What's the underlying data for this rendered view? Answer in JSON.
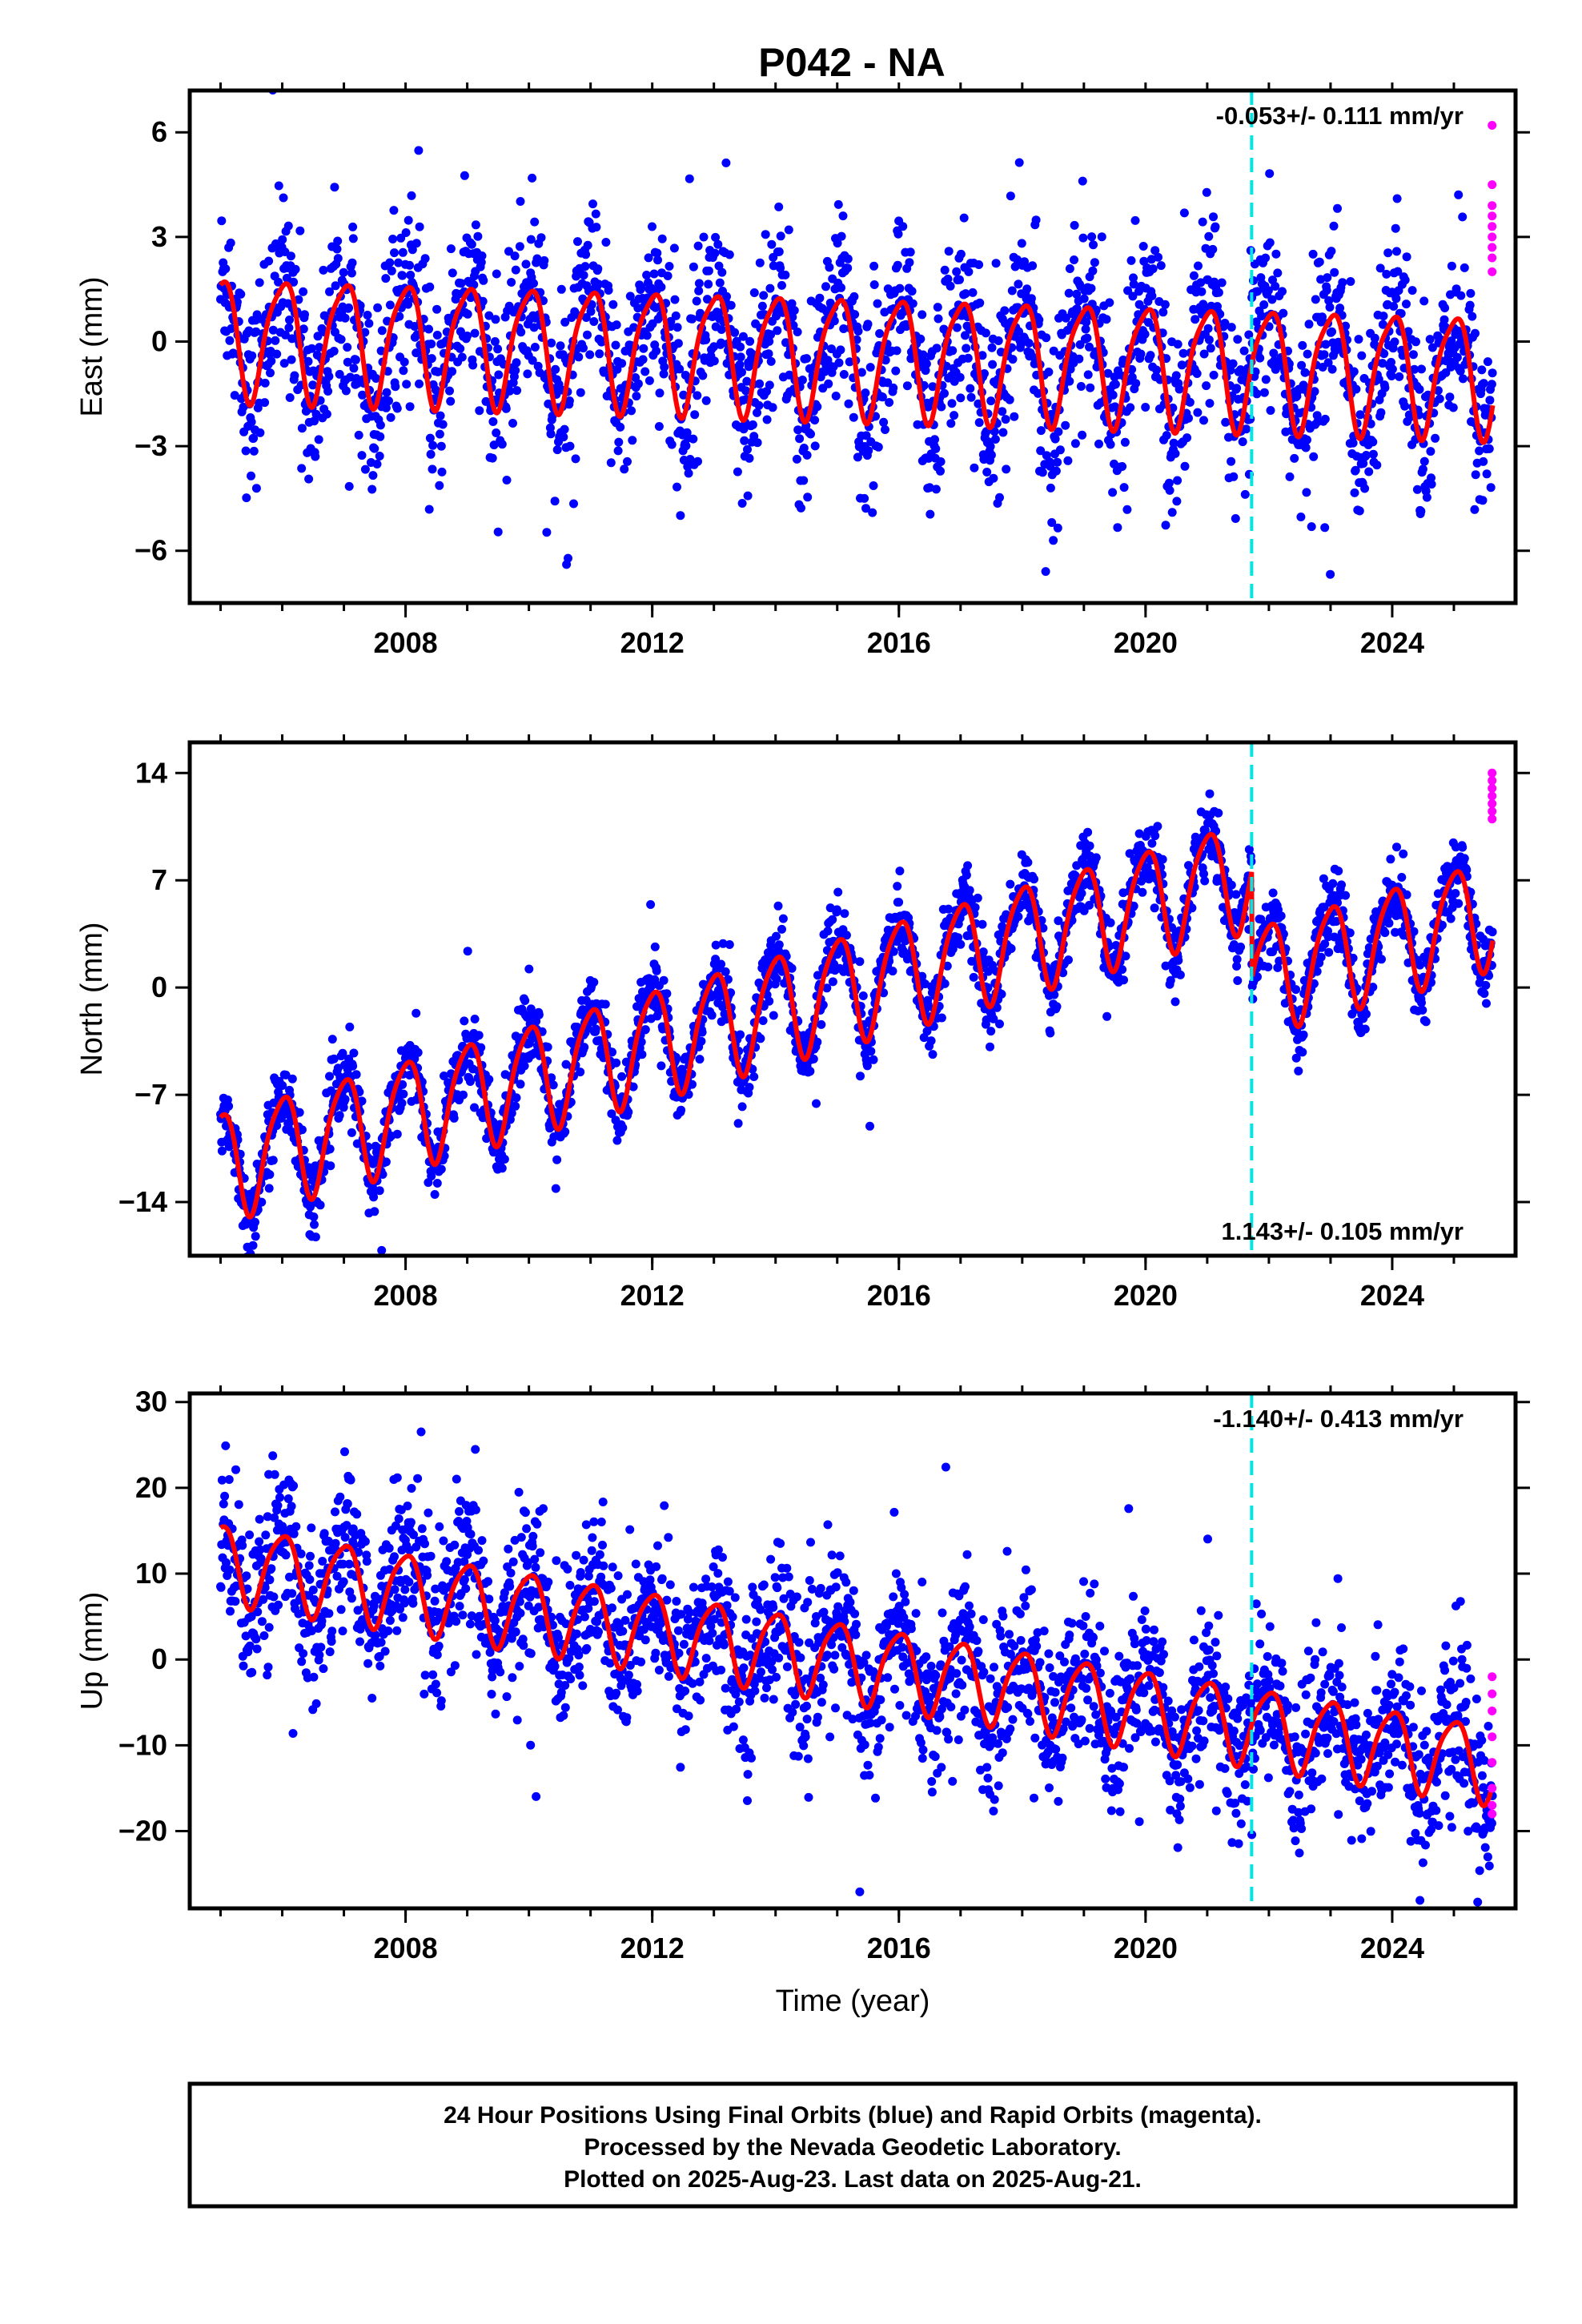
{
  "title": "P042 - NA",
  "colors": {
    "final_orbits": "#0000ff",
    "rapid_orbits": "#ff00ff",
    "model": "#ff0000",
    "event_line": "#00e5e5"
  },
  "footer": {
    "line1": "24 Hour Positions Using Final Orbits (blue) and Rapid Orbits (magenta).",
    "line2": "Processed by the Nevada Geodetic Laboratory.",
    "line3": "Plotted on 2025-Aug-23. Last data on 2025-Aug-21."
  },
  "chart_data": [
    {
      "type": "scatter",
      "panel": "east",
      "ylabel": "East (mm)",
      "xlabel": "",
      "xlim": [
        2004.5,
        2026.0
      ],
      "ylim": [
        -7.5,
        7.2
      ],
      "xticks": [
        2008,
        2012,
        2016,
        2020,
        2024
      ],
      "yticks": [
        6,
        3,
        0,
        -3,
        -6
      ],
      "rate_label": "-0.053+/- 0.111 mm/yr",
      "rate_position": "top-right",
      "event_line_x": 2021.72,
      "model": {
        "offset": 0.2,
        "trend_mm_per_yr": -0.053,
        "annual_amp": 1.7,
        "semiannual_amp": 0.35,
        "step": 0.0
      },
      "scatter_sd": 1.3,
      "rapid_values": [
        6.2,
        4.5,
        3.9,
        3.6,
        3.3,
        3.0,
        2.7,
        2.4,
        2.0
      ],
      "series": [
        {
          "name": "Final Orbits (blue)",
          "color": "#0000ff"
        },
        {
          "name": "Rapid Orbits (magenta)",
          "color": "#ff00ff"
        },
        {
          "name": "model",
          "color": "#ff0000"
        }
      ]
    },
    {
      "type": "scatter",
      "panel": "north",
      "ylabel": "North (mm)",
      "xlabel": "",
      "xlim": [
        2004.5,
        2026.0
      ],
      "ylim": [
        -17.5,
        16.0
      ],
      "xticks": [
        2008,
        2012,
        2016,
        2020,
        2024
      ],
      "yticks": [
        14,
        7,
        0,
        -7,
        -14
      ],
      "rate_label": "1.143+/- 0.105 mm/yr",
      "rate_position": "bottom-right",
      "event_line_x": 2021.72,
      "model": {
        "offset": -11.5,
        "trend_mm_per_yr": 1.143,
        "annual_amp": 3.5,
        "semiannual_amp": 0.6,
        "step": -7.0
      },
      "scatter_sd": 1.2,
      "rapid_values": [
        14.0,
        13.5,
        13.0,
        12.5,
        12.0,
        11.5,
        11.0
      ],
      "series": [
        {
          "name": "Final Orbits (blue)",
          "color": "#0000ff"
        },
        {
          "name": "Rapid Orbits (magenta)",
          "color": "#ff00ff"
        },
        {
          "name": "model",
          "color": "#ff0000"
        }
      ]
    },
    {
      "type": "scatter",
      "panel": "up",
      "ylabel": "Up (mm)",
      "xlabel": "Time (year)",
      "xlim": [
        2004.5,
        2026.0
      ],
      "ylim": [
        -29,
        31
      ],
      "xticks": [
        2008,
        2012,
        2016,
        2020,
        2024
      ],
      "yticks": [
        30,
        20,
        10,
        0,
        -10,
        -20
      ],
      "rate_label": "-1.140+/- 0.413 mm/yr",
      "rate_position": "top-right",
      "event_line_x": 2021.72,
      "model": {
        "offset": 11.5,
        "trend_mm_per_yr": -1.14,
        "annual_amp": 4.5,
        "semiannual_amp": 0.8,
        "step": 0.0
      },
      "scatter_sd": 4.5,
      "rapid_values": [
        -2.0,
        -4.0,
        -6.0,
        -9.0,
        -12.0,
        -15.0,
        -17.0,
        -18.0
      ],
      "series": [
        {
          "name": "Final Orbits (blue)",
          "color": "#0000ff"
        },
        {
          "name": "Rapid Orbits (magenta)",
          "color": "#ff00ff"
        },
        {
          "name": "model",
          "color": "#ff0000"
        }
      ]
    }
  ]
}
